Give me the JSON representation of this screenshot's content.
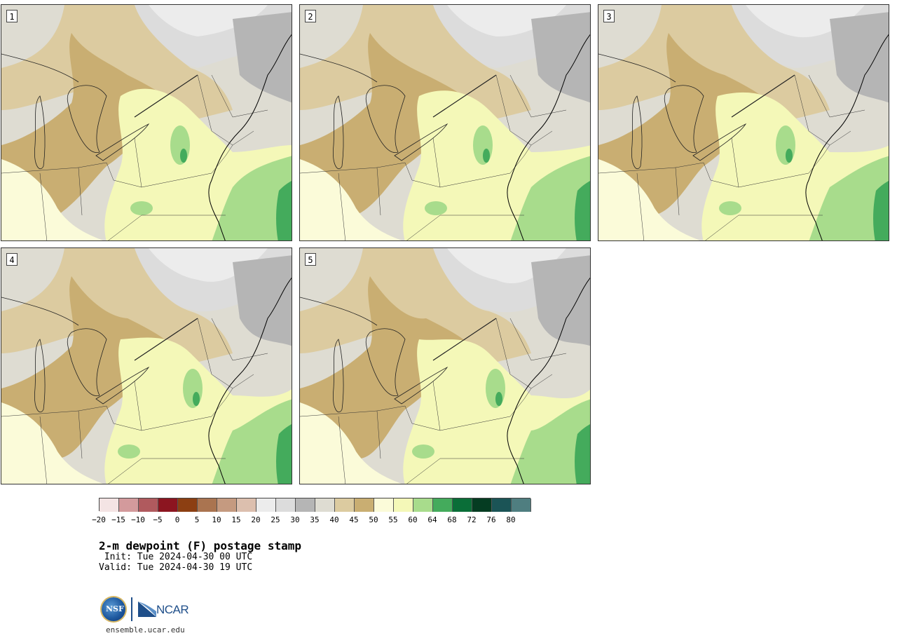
{
  "panels": [
    {
      "label": "1"
    },
    {
      "label": "2"
    },
    {
      "label": "3"
    },
    {
      "label": "4"
    },
    {
      "label": "5"
    }
  ],
  "colorbar": {
    "colors": [
      "#f4e4e4",
      "#d39a9c",
      "#b05a5e",
      "#8c1520",
      "#8c3f12",
      "#aa7450",
      "#c59a80",
      "#dcbfae",
      "#ececec",
      "#dcdcdc",
      "#b5b5b5",
      "#dedcd2",
      "#dccba0",
      "#c9ae72",
      "#fbfbd9",
      "#f4f8b8",
      "#a8dc8c",
      "#44ab5c",
      "#0a6e38",
      "#053c22",
      "#1b5456",
      "#4f7e80"
    ],
    "tick_labels": [
      "−20",
      "−15",
      "−10",
      "−5",
      "0",
      "5",
      "10",
      "15",
      "20",
      "25",
      "30",
      "35",
      "40",
      "45",
      "50",
      "55",
      "60",
      "64",
      "68",
      "72",
      "76",
      "80"
    ]
  },
  "title": "2-m dewpoint (F) postage stamp",
  "init": " Init: Tue 2024-04-30 00 UTC",
  "valid": "Valid: Tue 2024-04-30 19 UTC",
  "logo": {
    "nsf": "NSF",
    "ncar": "NCAR"
  },
  "website": "ensemble.ucar.edu"
}
